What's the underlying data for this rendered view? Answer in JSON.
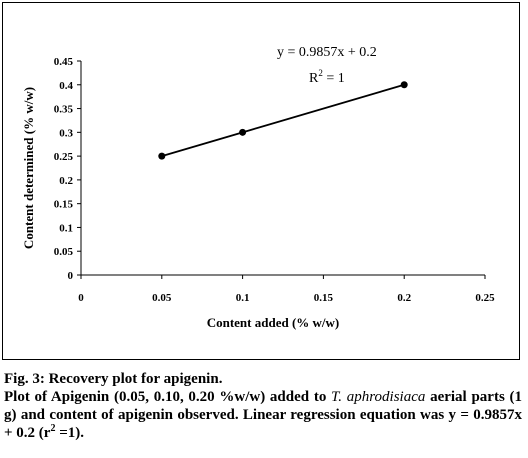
{
  "chart_data": {
    "type": "scatter",
    "xlabel": "Content added (% w/w)",
    "ylabel": "Content determined (% w/w)",
    "x_ticks": [
      "0",
      "0.05",
      "0.1",
      "0.15",
      "0.2",
      "0.25"
    ],
    "y_ticks": [
      "0",
      "0.05",
      "0.1",
      "0.15",
      "0.2",
      "0.25",
      "0.3",
      "0.35",
      "0.4",
      "0.45"
    ],
    "xlim": [
      0,
      0.25
    ],
    "ylim": [
      0,
      0.45
    ],
    "grid": false,
    "series": [
      {
        "points": [
          {
            "x": 0.05,
            "y": 0.25
          },
          {
            "x": 0.1,
            "y": 0.3
          },
          {
            "x": 0.2,
            "y": 0.4
          }
        ]
      }
    ],
    "trendline": {
      "slope": 0.9857,
      "intercept": 0.2
    },
    "annotations": {
      "equation": "y = 0.9857x + 0.2",
      "r2_base": "R",
      "r2_exp": "2",
      "r2_val": " = 1"
    }
  },
  "caption": {
    "title": "Fig. 3: Recovery plot for apigenin.",
    "line_a": "Plot of Apigenin (0.05, 0.10, 0.20 %w/w) added to ",
    "italic": "T. aphrodisiaca",
    "line_b": " aerial parts (1 g) and content of apigenin observed. Linear regression equation was y = 0.9857x + 0.2 (r",
    "sup": "2",
    "line_c": " =1)."
  }
}
